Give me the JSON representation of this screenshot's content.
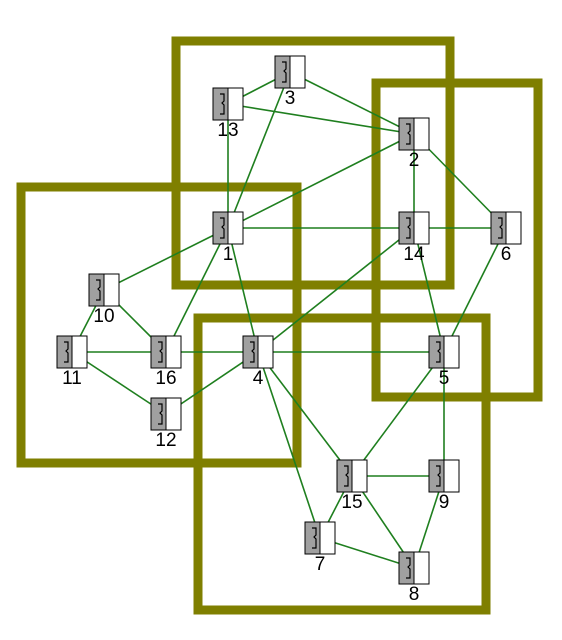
{
  "colors": {
    "group_border": "#7f7f00",
    "edge": "#1f7f1f",
    "node_dark": "#a0a0a0",
    "node_light": "#ffffff",
    "node_outline": "#000000"
  },
  "groups": [
    {
      "id": "group-top"
    },
    {
      "id": "group-right"
    },
    {
      "id": "group-left"
    },
    {
      "id": "group-bottom"
    }
  ],
  "nodes": [
    {
      "id": "1",
      "label": "1"
    },
    {
      "id": "2",
      "label": "2"
    },
    {
      "id": "3",
      "label": "3"
    },
    {
      "id": "4",
      "label": "4"
    },
    {
      "id": "5",
      "label": "5"
    },
    {
      "id": "6",
      "label": "6"
    },
    {
      "id": "7",
      "label": "7"
    },
    {
      "id": "8",
      "label": "8"
    },
    {
      "id": "9",
      "label": "9"
    },
    {
      "id": "10",
      "label": "10"
    },
    {
      "id": "11",
      "label": "11"
    },
    {
      "id": "12",
      "label": "12"
    },
    {
      "id": "13",
      "label": "13"
    },
    {
      "id": "14",
      "label": "14"
    },
    {
      "id": "15",
      "label": "15"
    },
    {
      "id": "16",
      "label": "16"
    }
  ],
  "edges": [
    [
      "13",
      "3"
    ],
    [
      "13",
      "2"
    ],
    [
      "13",
      "1"
    ],
    [
      "3",
      "2"
    ],
    [
      "3",
      "1"
    ],
    [
      "2",
      "1"
    ],
    [
      "2",
      "14"
    ],
    [
      "2",
      "6"
    ],
    [
      "1",
      "14"
    ],
    [
      "1",
      "4"
    ],
    [
      "1",
      "10"
    ],
    [
      "1",
      "16"
    ],
    [
      "14",
      "6"
    ],
    [
      "14",
      "4"
    ],
    [
      "14",
      "5"
    ],
    [
      "6",
      "5"
    ],
    [
      "10",
      "11"
    ],
    [
      "10",
      "16"
    ],
    [
      "11",
      "16"
    ],
    [
      "11",
      "12"
    ],
    [
      "16",
      "4"
    ],
    [
      "12",
      "4"
    ],
    [
      "4",
      "5"
    ],
    [
      "4",
      "15"
    ],
    [
      "4",
      "7"
    ],
    [
      "5",
      "15"
    ],
    [
      "5",
      "9"
    ],
    [
      "15",
      "9"
    ],
    [
      "15",
      "7"
    ],
    [
      "15",
      "8"
    ],
    [
      "9",
      "8"
    ],
    [
      "7",
      "8"
    ]
  ]
}
